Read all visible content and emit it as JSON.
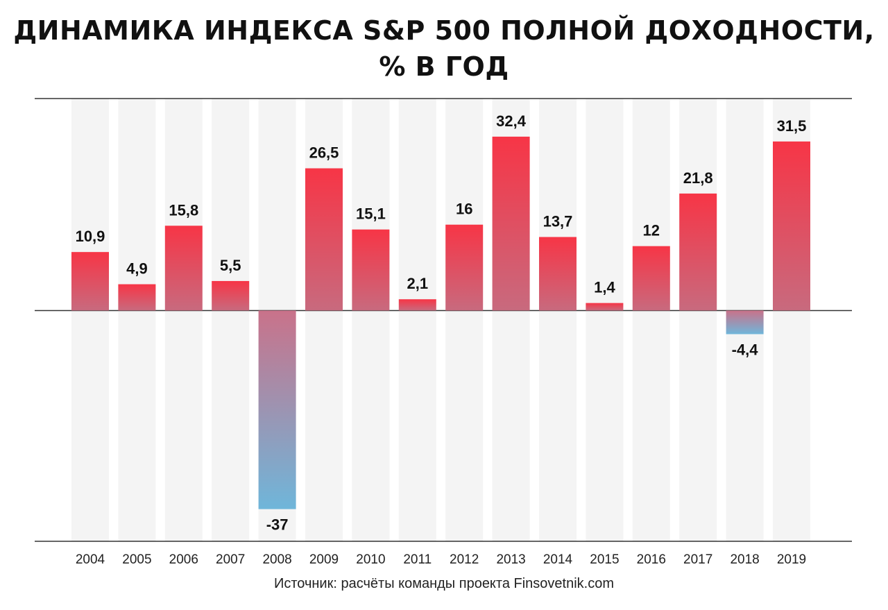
{
  "title_lines": [
    "ДИНАМИКА ИНДЕКСА S&P 500 ПОЛНОЙ ДОХОДНОСТИ,",
    "% В ГОД"
  ],
  "source": "Источник: расчёты команды проекта Finsovetnik.com",
  "colors": {
    "positive_top": "#f73546",
    "positive_bottom": "#c86a7e",
    "negative_top": "#c9728a",
    "negative_bottom": "#6fb6da",
    "column_background": "#f4f4f4",
    "axis_line": "#333333",
    "label_text": "#111111"
  },
  "chart_data": {
    "type": "bar",
    "title": "ДИНАМИКА ИНДЕКСА S&P 500 ПОЛНОЙ ДОХОДНОСТИ, % В ГОД",
    "categories": [
      "2004",
      "2005",
      "2006",
      "2007",
      "2008",
      "2009",
      "2010",
      "2011",
      "2012",
      "2013",
      "2014",
      "2015",
      "2016",
      "2017",
      "2018",
      "2019"
    ],
    "values": [
      10.9,
      4.9,
      15.8,
      5.5,
      -37,
      26.5,
      15.1,
      2.1,
      16,
      32.4,
      13.7,
      1.4,
      12,
      21.8,
      -4.4,
      31.5
    ],
    "value_labels": [
      "10,9",
      "4,9",
      "15,8",
      "5,5",
      "-37",
      "26,5",
      "15,1",
      "2,1",
      "16",
      "32,4",
      "13,7",
      "1,4",
      "12",
      "21,8",
      "-4,4",
      "31,5"
    ],
    "ylim": [
      -43,
      39.5
    ],
    "xlabel": "",
    "ylabel": "",
    "grid": false,
    "legend": "none"
  }
}
